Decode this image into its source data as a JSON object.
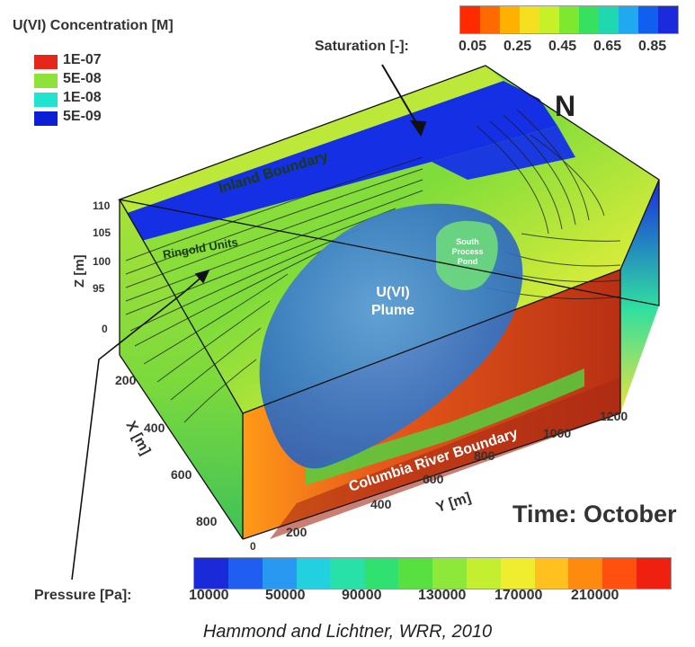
{
  "concentration_legend": {
    "title": "U(VI) Concentration [M]",
    "entries": [
      {
        "label": "1E-07",
        "color": "#e8251a"
      },
      {
        "label": "5E-08",
        "color": "#8fe23a"
      },
      {
        "label": "1E-08",
        "color": "#22e2d0"
      },
      {
        "label": "5E-09",
        "color": "#0b1fd6"
      }
    ]
  },
  "saturation_legend": {
    "label": "Saturation [-]:",
    "ticks": [
      "0.05",
      "0.25",
      "0.45",
      "0.65",
      "0.85"
    ],
    "colors": [
      "#ff2a00",
      "#ff6a00",
      "#ffb000",
      "#f4e020",
      "#c8f028",
      "#7ee830",
      "#38e060",
      "#20d8b0",
      "#20a8f0",
      "#1060f0",
      "#1a2adc"
    ]
  },
  "pressure_legend": {
    "label": "Pressure [Pa]:",
    "ticks": [
      "10000",
      "50000",
      "90000",
      "130000",
      "170000",
      "210000"
    ],
    "colors": [
      "#1a2ad8",
      "#1f5ef0",
      "#2898f0",
      "#22d0e0",
      "#28e0a8",
      "#30e070",
      "#58e040",
      "#8ee83a",
      "#c4ee30",
      "#f0ec30",
      "#ffc020",
      "#ff8a10",
      "#ff5010",
      "#f02010"
    ]
  },
  "north_label": "N",
  "time_label": "Time: October",
  "citation": "Hammond and Lichtner, WRR, 2010",
  "annotations": {
    "inland_boundary": "Inland Boundary",
    "ringold_units": "Ringold Units",
    "plume_line1": "U(VI)",
    "plume_line2": "Plume",
    "pond_line1": "South",
    "pond_line2": "Process",
    "pond_line3": "Pond",
    "river_boundary": "Columbia River Boundary"
  },
  "axes": {
    "z_label": "Z [m]",
    "z_ticks": [
      "110",
      "105",
      "100",
      "95",
      "0"
    ],
    "x_label": "X [m]",
    "x_ticks": [
      "200",
      "400",
      "600",
      "800"
    ],
    "y_label": "Y [m]",
    "y_ticks": [
      "200",
      "400",
      "600",
      "800",
      "1000",
      "1200"
    ],
    "origin": "0"
  },
  "colors": {
    "plume": "#2f74c8",
    "inland_face": "#b6e63a",
    "water_table_blue": "#1532e0",
    "river_face": "#d9421c",
    "contour": "#1a1a1a"
  }
}
